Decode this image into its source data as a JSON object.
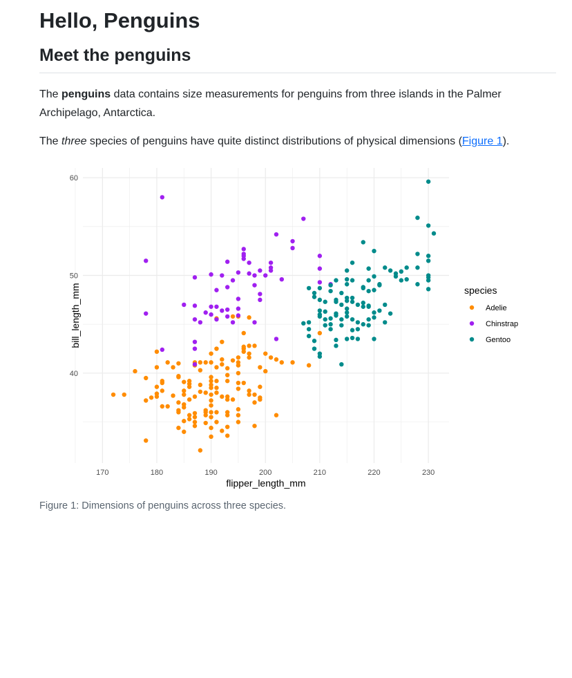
{
  "page": {
    "title": "Hello, Penguins",
    "section_title": "Meet the penguins",
    "para1": {
      "pre": "The ",
      "bold": "penguins",
      "post": " data contains size measurements for penguins from three islands in the Palmer Archipelago, Antarctica."
    },
    "para2": {
      "pre": "The ",
      "em": "three",
      "mid": " species of penguins have quite distinct distributions of physical dimensions (",
      "link": "Figure 1",
      "post": ")."
    },
    "caption": "Figure 1: Dimensions of penguins across three species."
  },
  "chart_data": {
    "type": "scatter",
    "xlabel": "flipper_length_mm",
    "ylabel": "bill_length_mm",
    "xlim": [
      166.4,
      233.8
    ],
    "ylim": [
      30.8,
      61
    ],
    "xticks": [
      170,
      180,
      190,
      200,
      210,
      220,
      230
    ],
    "yticks": [
      40,
      50,
      60
    ],
    "grid": true,
    "legend": {
      "title": "species",
      "placement": "right"
    },
    "series": [
      {
        "name": "Adelie",
        "color": "#FF8C00",
        "points": [
          [
            172,
            37.8
          ],
          [
            174,
            37.8
          ],
          [
            176,
            40.2
          ],
          [
            178,
            39.5
          ],
          [
            178,
            37.2
          ],
          [
            178,
            33.1
          ],
          [
            179,
            37.5
          ],
          [
            180,
            42.2
          ],
          [
            180,
            40.6
          ],
          [
            180,
            38.6
          ],
          [
            180,
            37.6
          ],
          [
            180,
            37.9
          ],
          [
            181,
            39.2
          ],
          [
            181,
            39.0
          ],
          [
            181,
            38.2
          ],
          [
            181,
            36.6
          ],
          [
            182,
            41.1
          ],
          [
            182,
            36.6
          ],
          [
            183,
            40.6
          ],
          [
            183,
            37.7
          ],
          [
            184,
            41.0
          ],
          [
            184,
            39.7
          ],
          [
            184,
            39.6
          ],
          [
            184,
            37.0
          ],
          [
            184,
            36.2
          ],
          [
            184,
            36.0
          ],
          [
            184,
            34.4
          ],
          [
            185,
            39.1
          ],
          [
            185,
            38.2
          ],
          [
            185,
            37.8
          ],
          [
            185,
            36.8
          ],
          [
            185,
            36.5
          ],
          [
            185,
            35.1
          ],
          [
            185,
            34.0
          ],
          [
            186,
            38.9
          ],
          [
            186,
            38.6
          ],
          [
            186,
            39.2
          ],
          [
            186,
            37.3
          ],
          [
            186,
            35.3
          ],
          [
            186,
            35.7
          ],
          [
            187,
            41.1
          ],
          [
            187,
            40.8
          ],
          [
            187,
            37.6
          ],
          [
            187,
            35.9
          ],
          [
            187,
            35.5
          ],
          [
            187,
            35.0
          ],
          [
            187,
            34.6
          ],
          [
            188,
            41.1
          ],
          [
            188,
            40.3
          ],
          [
            188,
            38.8
          ],
          [
            188,
            38.1
          ],
          [
            188,
            32.1
          ],
          [
            189,
            41.1
          ],
          [
            189,
            38.0
          ],
          [
            189,
            36.0
          ],
          [
            189,
            35.7
          ],
          [
            189,
            34.9
          ],
          [
            189,
            36.2
          ],
          [
            190,
            42.0
          ],
          [
            190,
            41.1
          ],
          [
            190,
            39.6
          ],
          [
            190,
            39.2
          ],
          [
            190,
            38.8
          ],
          [
            190,
            38.5
          ],
          [
            190,
            37.8
          ],
          [
            190,
            37.2
          ],
          [
            190,
            36.7
          ],
          [
            190,
            36.0
          ],
          [
            190,
            35.5
          ],
          [
            190,
            34.4
          ],
          [
            190,
            33.5
          ],
          [
            191,
            42.5
          ],
          [
            191,
            40.6
          ],
          [
            191,
            39.2
          ],
          [
            191,
            38.5
          ],
          [
            191,
            38.0
          ],
          [
            191,
            36.0
          ],
          [
            191,
            35.0
          ],
          [
            191,
            45.6
          ],
          [
            192,
            43.2
          ],
          [
            192,
            41.4
          ],
          [
            192,
            40.9
          ],
          [
            192,
            37.6
          ],
          [
            192,
            34.1
          ],
          [
            193,
            40.5
          ],
          [
            193,
            39.8
          ],
          [
            193,
            39.2
          ],
          [
            193,
            37.6
          ],
          [
            193,
            37.3
          ],
          [
            193,
            36.0
          ],
          [
            193,
            35.7
          ],
          [
            193,
            34.5
          ],
          [
            193,
            33.6
          ],
          [
            194,
            41.3
          ],
          [
            194,
            37.3
          ],
          [
            194,
            45.8
          ],
          [
            195,
            45.8
          ],
          [
            195,
            41.6
          ],
          [
            195,
            41.1
          ],
          [
            195,
            40.8
          ],
          [
            195,
            40.0
          ],
          [
            195,
            39.0
          ],
          [
            195,
            38.4
          ],
          [
            195,
            36.3
          ],
          [
            195,
            35.7
          ],
          [
            195,
            35.0
          ],
          [
            196,
            44.1
          ],
          [
            196,
            42.7
          ],
          [
            196,
            42.5
          ],
          [
            196,
            39.0
          ],
          [
            196,
            42.2
          ],
          [
            197,
            42.8
          ],
          [
            197,
            42.0
          ],
          [
            197,
            41.6
          ],
          [
            197,
            38.2
          ],
          [
            197,
            37.8
          ],
          [
            197,
            45.7
          ],
          [
            198,
            42.8
          ],
          [
            198,
            37.8
          ],
          [
            198,
            37.0
          ],
          [
            198,
            34.6
          ],
          [
            199,
            40.6
          ],
          [
            199,
            38.6
          ],
          [
            199,
            37.5
          ],
          [
            199,
            37.3
          ],
          [
            200,
            42.0
          ],
          [
            200,
            40.2
          ],
          [
            201,
            41.6
          ],
          [
            202,
            41.4
          ],
          [
            202,
            35.7
          ],
          [
            203,
            41.1
          ],
          [
            205,
            41.1
          ],
          [
            208,
            40.8
          ],
          [
            210,
            44.1
          ]
        ]
      },
      {
        "name": "Chinstrap",
        "color": "#A020F0",
        "points": [
          [
            181,
            58.0
          ],
          [
            207,
            55.8
          ],
          [
            202,
            54.2
          ],
          [
            205,
            53.5
          ],
          [
            205,
            52.8
          ],
          [
            196,
            52.7
          ],
          [
            196,
            52.2
          ],
          [
            196,
            52.0
          ],
          [
            196,
            51.7
          ],
          [
            201,
            51.3
          ],
          [
            178,
            51.5
          ],
          [
            193,
            51.4
          ],
          [
            197,
            51.3
          ],
          [
            201,
            50.8
          ],
          [
            201,
            50.5
          ],
          [
            195,
            50.3
          ],
          [
            197,
            50.2
          ],
          [
            190,
            50.1
          ],
          [
            192,
            50.0
          ],
          [
            187,
            49.8
          ],
          [
            199,
            50.5
          ],
          [
            198,
            50.0
          ],
          [
            200,
            50.0
          ],
          [
            194,
            49.5
          ],
          [
            198,
            49.0
          ],
          [
            193,
            48.8
          ],
          [
            203,
            49.6
          ],
          [
            210,
            49.3
          ],
          [
            210,
            50.7
          ],
          [
            210,
            52.0
          ],
          [
            212,
            49.1
          ],
          [
            191,
            48.5
          ],
          [
            195,
            47.6
          ],
          [
            199,
            48.1
          ],
          [
            199,
            47.5
          ],
          [
            187,
            46.9
          ],
          [
            178,
            46.1
          ],
          [
            190,
            46.8
          ],
          [
            192,
            46.4
          ],
          [
            185,
            47.0
          ],
          [
            193,
            46.5
          ],
          [
            195,
            46.6
          ],
          [
            189,
            46.2
          ],
          [
            191,
            46.8
          ],
          [
            190,
            46.0
          ],
          [
            193,
            45.8
          ],
          [
            195,
            45.9
          ],
          [
            187,
            45.5
          ],
          [
            188,
            45.2
          ],
          [
            191,
            45.5
          ],
          [
            194,
            45.2
          ],
          [
            198,
            45.2
          ],
          [
            187,
            43.2
          ],
          [
            187,
            42.5
          ],
          [
            181,
            42.4
          ],
          [
            202,
            43.5
          ],
          [
            187,
            40.9
          ]
        ]
      },
      {
        "name": "Gentoo",
        "color": "#008B8B",
        "points": [
          [
            230,
            59.6
          ],
          [
            228,
            55.9
          ],
          [
            230,
            55.1
          ],
          [
            231,
            54.3
          ],
          [
            218,
            53.4
          ],
          [
            220,
            52.5
          ],
          [
            228,
            52.2
          ],
          [
            230,
            52.0
          ],
          [
            230,
            51.5
          ],
          [
            216,
            51.3
          ],
          [
            219,
            50.7
          ],
          [
            222,
            50.8
          ],
          [
            223,
            50.5
          ],
          [
            224,
            50.2
          ],
          [
            225,
            50.4
          ],
          [
            226,
            50.8
          ],
          [
            228,
            50.8
          ],
          [
            224,
            49.9
          ],
          [
            225,
            49.5
          ],
          [
            226,
            49.6
          ],
          [
            230,
            50.0
          ],
          [
            230,
            49.8
          ],
          [
            230,
            49.5
          ],
          [
            228,
            49.1
          ],
          [
            230,
            48.6
          ],
          [
            215,
            50.5
          ],
          [
            213,
            49.5
          ],
          [
            215,
            49.6
          ],
          [
            215,
            49.1
          ],
          [
            216,
            49.5
          ],
          [
            218,
            48.8
          ],
          [
            218,
            48.7
          ],
          [
            219,
            48.4
          ],
          [
            220,
            48.5
          ],
          [
            221,
            49.1
          ],
          [
            221,
            49.0
          ],
          [
            219,
            49.5
          ],
          [
            220,
            49.9
          ],
          [
            212,
            49.0
          ],
          [
            212,
            48.4
          ],
          [
            214,
            48.2
          ],
          [
            208,
            48.7
          ],
          [
            209,
            48.2
          ],
          [
            210,
            48.7
          ],
          [
            209,
            47.8
          ],
          [
            210,
            47.5
          ],
          [
            211,
            47.3
          ],
          [
            213,
            47.5
          ],
          [
            213,
            47.3
          ],
          [
            214,
            47.0
          ],
          [
            215,
            47.7
          ],
          [
            215,
            47.4
          ],
          [
            216,
            47.7
          ],
          [
            216,
            47.3
          ],
          [
            218,
            47.2
          ],
          [
            217,
            47.0
          ],
          [
            219,
            46.8
          ],
          [
            219,
            46.9
          ],
          [
            220,
            46.2
          ],
          [
            221,
            46.4
          ],
          [
            222,
            47.0
          ],
          [
            223,
            46.1
          ],
          [
            222,
            45.2
          ],
          [
            218,
            46.8
          ],
          [
            220,
            45.7
          ],
          [
            219,
            45.5
          ],
          [
            217,
            45.2
          ],
          [
            216,
            45.5
          ],
          [
            215,
            46.6
          ],
          [
            215,
            46.2
          ],
          [
            213,
            46.1
          ],
          [
            214,
            45.5
          ],
          [
            215,
            45.8
          ],
          [
            212,
            45.6
          ],
          [
            212,
            45.0
          ],
          [
            211,
            45.5
          ],
          [
            211,
            46.3
          ],
          [
            210,
            45.8
          ],
          [
            210,
            46.0
          ],
          [
            210,
            46.4
          ],
          [
            211,
            44.9
          ],
          [
            212,
            44.5
          ],
          [
            213,
            45.9
          ],
          [
            214,
            44.9
          ],
          [
            216,
            44.4
          ],
          [
            217,
            44.5
          ],
          [
            218,
            45.0
          ],
          [
            219,
            44.9
          ],
          [
            208,
            44.5
          ],
          [
            208,
            43.8
          ],
          [
            209,
            43.3
          ],
          [
            209,
            42.5
          ],
          [
            210,
            42.0
          ],
          [
            210,
            41.7
          ],
          [
            207,
            45.1
          ],
          [
            208,
            45.2
          ],
          [
            213,
            42.8
          ],
          [
            215,
            43.5
          ],
          [
            216,
            43.6
          ],
          [
            217,
            43.5
          ],
          [
            214,
            40.9
          ],
          [
            213,
            43.4
          ],
          [
            220,
            43.5
          ]
        ]
      }
    ]
  }
}
